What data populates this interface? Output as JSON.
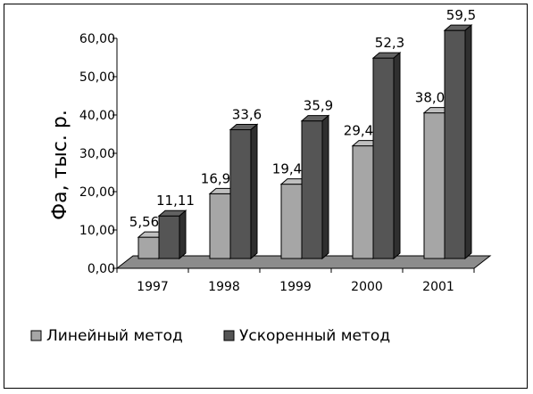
{
  "chart_data": {
    "type": "bar",
    "style": "3d-clustered",
    "ylabel": "Фа, тыс. р.",
    "categories": [
      "1997",
      "1998",
      "1999",
      "2000",
      "2001"
    ],
    "series": [
      {
        "name": "Линейный метод",
        "color": "#a6a6a6",
        "values": [
          5.56,
          16.9,
          19.4,
          29.4,
          38.0
        ],
        "labels": [
          "5,56",
          "16,9",
          "19,4",
          "29,4",
          "38,0"
        ]
      },
      {
        "name": "Ускоренный метод",
        "color": "#555555",
        "values": [
          11.11,
          33.6,
          35.9,
          52.3,
          59.5
        ],
        "labels": [
          "11,11",
          "33,6",
          "35,9",
          "52,3",
          "59,5"
        ]
      }
    ],
    "ylim": [
      0,
      60
    ],
    "yticks": [
      0,
      10,
      20,
      30,
      40,
      50,
      60
    ],
    "ytick_labels": [
      "0,00",
      "10,00",
      "20,00",
      "30,00",
      "40,00",
      "50,00",
      "60,00"
    ],
    "floor_color": "#8c8c8c",
    "grid": false,
    "legend_position": "bottom"
  }
}
